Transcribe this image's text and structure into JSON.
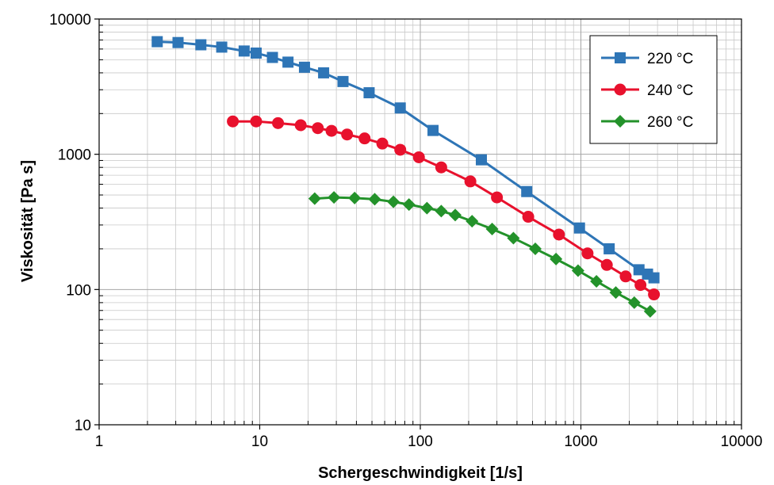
{
  "chart_data": {
    "type": "line",
    "title": "",
    "xlabel": "Schergeschwindigkeit [1/s]",
    "ylabel": "Viskosität [Pa s]",
    "x_scale": "log",
    "y_scale": "log",
    "xlim": [
      1,
      10000
    ],
    "ylim": [
      10,
      10000
    ],
    "x_ticks": [
      "1",
      "10",
      "100",
      "1000",
      "10000"
    ],
    "y_ticks": [
      "10",
      "100",
      "1000",
      "10000"
    ],
    "grid": true,
    "legend_position": "top-right",
    "series": [
      {
        "name": "220 °C",
        "color": "#2E75B6",
        "marker": "square",
        "points": [
          [
            2.3,
            6800
          ],
          [
            3.1,
            6700
          ],
          [
            4.3,
            6450
          ],
          [
            5.8,
            6200
          ],
          [
            8.0,
            5800
          ],
          [
            9.5,
            5600
          ],
          [
            12,
            5200
          ],
          [
            15,
            4800
          ],
          [
            19,
            4400
          ],
          [
            25,
            4000
          ],
          [
            33,
            3450
          ],
          [
            48,
            2850
          ],
          [
            75,
            2200
          ],
          [
            120,
            1500
          ],
          [
            240,
            910
          ],
          [
            460,
            530
          ],
          [
            980,
            285
          ],
          [
            1500,
            200
          ],
          [
            2300,
            140
          ],
          [
            2600,
            130
          ],
          [
            2850,
            122
          ]
        ]
      },
      {
        "name": "240 °C",
        "color": "#E8112D",
        "marker": "circle",
        "points": [
          [
            6.8,
            1750
          ],
          [
            9.5,
            1750
          ],
          [
            13,
            1700
          ],
          [
            18,
            1640
          ],
          [
            23,
            1560
          ],
          [
            28,
            1490
          ],
          [
            35,
            1400
          ],
          [
            45,
            1310
          ],
          [
            58,
            1200
          ],
          [
            75,
            1080
          ],
          [
            98,
            950
          ],
          [
            135,
            800
          ],
          [
            205,
            630
          ],
          [
            300,
            480
          ],
          [
            470,
            345
          ],
          [
            730,
            255
          ],
          [
            1100,
            185
          ],
          [
            1450,
            152
          ],
          [
            1900,
            125
          ],
          [
            2350,
            108
          ],
          [
            2850,
            92
          ]
        ]
      },
      {
        "name": "260 °C",
        "color": "#23922A",
        "marker": "diamond",
        "points": [
          [
            22,
            470
          ],
          [
            29,
            480
          ],
          [
            39,
            475
          ],
          [
            52,
            465
          ],
          [
            68,
            445
          ],
          [
            85,
            425
          ],
          [
            110,
            400
          ],
          [
            135,
            380
          ],
          [
            165,
            355
          ],
          [
            210,
            320
          ],
          [
            280,
            280
          ],
          [
            380,
            240
          ],
          [
            520,
            200
          ],
          [
            700,
            168
          ],
          [
            960,
            138
          ],
          [
            1250,
            115
          ],
          [
            1650,
            95
          ],
          [
            2150,
            80
          ],
          [
            2700,
            69
          ]
        ]
      }
    ]
  }
}
